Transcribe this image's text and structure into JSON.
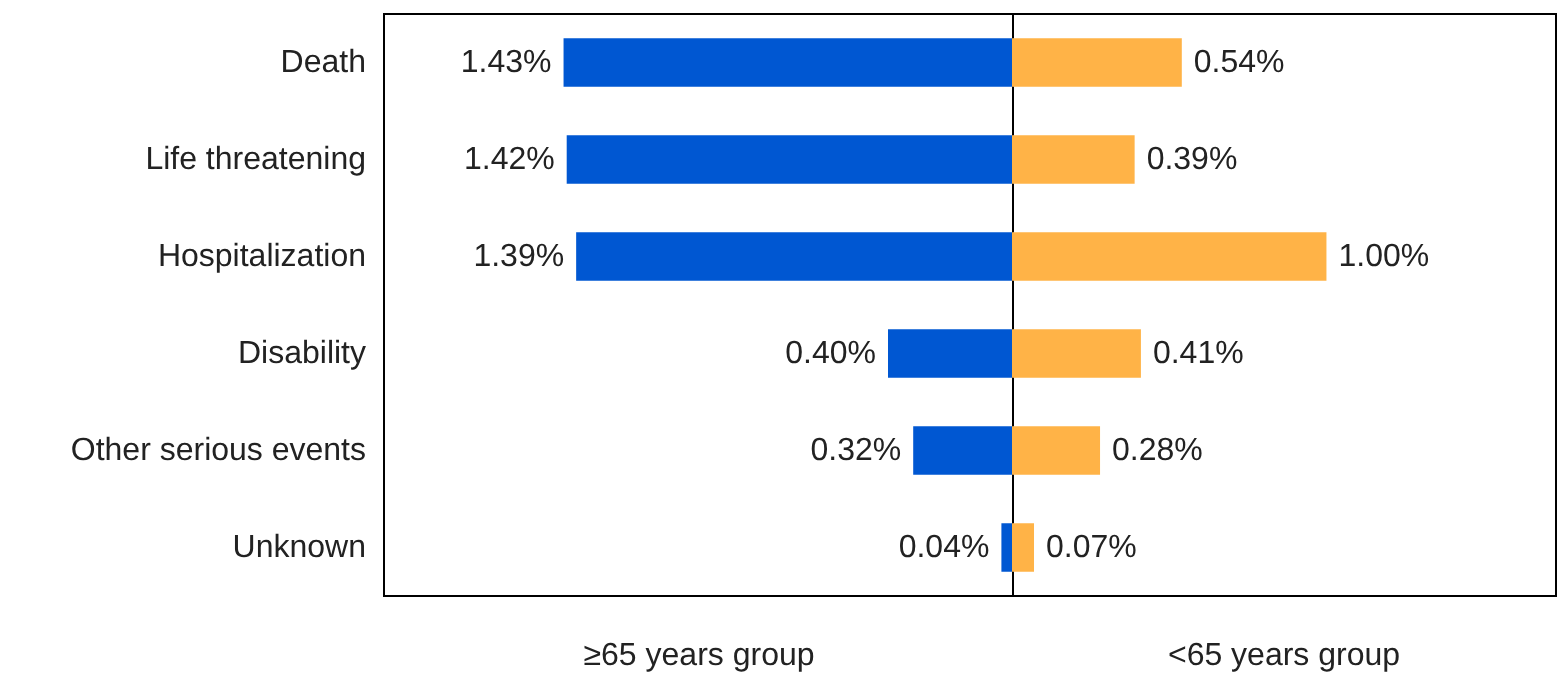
{
  "chart_data": [
    {
      "type": "bar",
      "orientation": "horizontal",
      "categories": [
        "Death",
        "Life threatening",
        "Hospitalization",
        "Disability",
        "Other serious events",
        "Unknown"
      ],
      "xlim": [
        2.0,
        0
      ],
      "tick_labels": "y",
      "xlabel": "≥65 years group",
      "series": [
        {
          "color": "#0057d2",
          "values": [
            1.43,
            1.42,
            1.39,
            0.4,
            0.32,
            0.04
          ],
          "value_labels": [
            "1.43%",
            "1.42%",
            "1.39%",
            "0.40%",
            "0.32%",
            "0.04%"
          ]
        }
      ]
    },
    {
      "type": "bar",
      "orientation": "horizontal",
      "categories": [
        null,
        null,
        null,
        null,
        null,
        null
      ],
      "xlim": [
        0,
        1.73
      ],
      "tick_labels": false,
      "xlabel": "<65 years group",
      "series": [
        {
          "color": "#ffb347",
          "values": [
            0.54,
            0.39,
            1.0,
            0.41,
            0.28,
            0.07
          ],
          "value_labels": [
            "0.54%",
            "0.39%",
            "1.00%",
            "0.41%",
            "0.28%",
            "0.07%"
          ]
        }
      ]
    }
  ]
}
